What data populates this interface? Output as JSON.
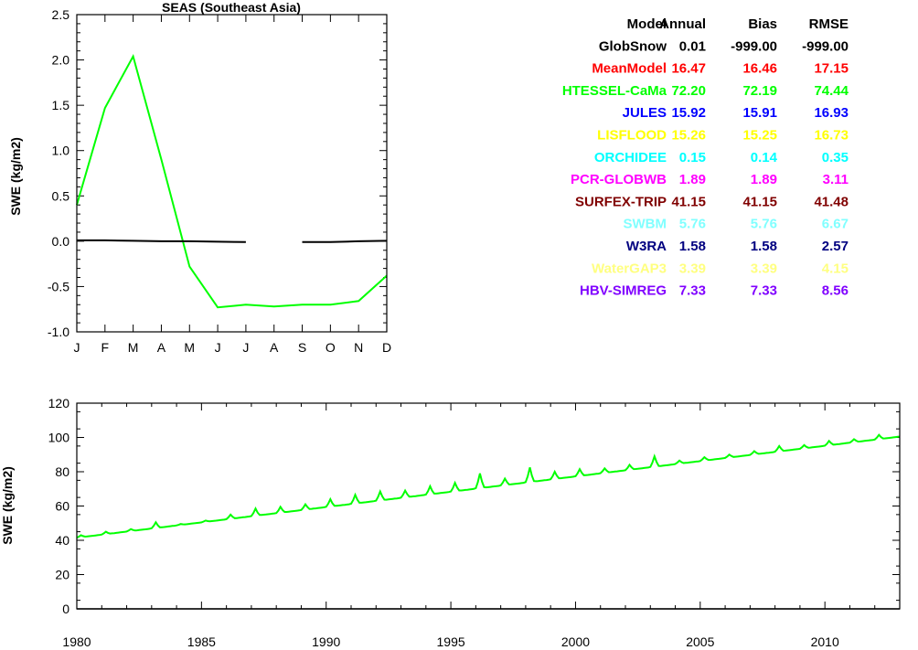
{
  "chart_data": [
    {
      "type": "line",
      "title": "SEAS (Southeast Asia)",
      "xlabel": "",
      "ylabel": "SWE (kg/m2)",
      "categories": [
        "J",
        "F",
        "M",
        "A",
        "M",
        "J",
        "J",
        "A",
        "S",
        "O",
        "N",
        "D"
      ],
      "ylim": [
        -1.0,
        2.5
      ],
      "yticks": [
        "2.5",
        "2.0",
        "1.5",
        "1.0",
        "0.5",
        "0.0",
        "-0.5",
        "-1.0"
      ],
      "series": [
        {
          "name": "HTESSEL-CaMa",
          "color": "#00ff00",
          "values": [
            0.4,
            1.47,
            2.04,
            0.9,
            -0.28,
            -0.73,
            -0.7,
            -0.72,
            -0.7,
            -0.7,
            -0.66,
            -0.38
          ]
        },
        {
          "name": "GlobSnow",
          "color": "#000000",
          "values": [
            0.01,
            0.01,
            0.005,
            0.0,
            0.0,
            -0.005,
            -0.01,
            null,
            -0.01,
            -0.01,
            0.0,
            0.005
          ]
        }
      ]
    },
    {
      "type": "line",
      "xlabel": "",
      "ylabel": "SWE (kg/m2)",
      "xlim": [
        1980,
        2013
      ],
      "ylim": [
        0,
        120
      ],
      "xticks": [
        "1980",
        "1985",
        "1990",
        "1995",
        "2000",
        "2005",
        "2010"
      ],
      "yticks": [
        "120",
        "100",
        "80",
        "60",
        "40",
        "20",
        "0"
      ],
      "series": [
        {
          "name": "HTESSEL-CaMa",
          "color": "#00ff00",
          "trend_start": 41.5,
          "trend_end": 100.5,
          "annual_peaks": [
            [
              1980,
              43
            ],
            [
              1981,
              45
            ],
            [
              1982,
              46.5
            ],
            [
              1983,
              50.5
            ],
            [
              1984,
              49.5
            ],
            [
              1985,
              51.5
            ],
            [
              1986,
              55
            ],
            [
              1987,
              58.5
            ],
            [
              1988,
              59.5
            ],
            [
              1989,
              61
            ],
            [
              1990,
              64
            ],
            [
              1991,
              66.5
            ],
            [
              1992,
              68.5
            ],
            [
              1993,
              69
            ],
            [
              1994,
              71.5
            ],
            [
              1995,
              73.5
            ],
            [
              1996,
              79
            ],
            [
              1997,
              76
            ],
            [
              1998,
              82.5
            ],
            [
              1999,
              80
            ],
            [
              2000,
              81.5
            ],
            [
              2001,
              82
            ],
            [
              2002,
              84
            ],
            [
              2003,
              89
            ],
            [
              2004,
              86.5
            ],
            [
              2005,
              88.5
            ],
            [
              2006,
              90
            ],
            [
              2007,
              92
            ],
            [
              2008,
              95
            ],
            [
              2009,
              95.5
            ],
            [
              2010,
              98
            ],
            [
              2011,
              99
            ],
            [
              2012,
              101.5
            ]
          ]
        },
        {
          "name": "GlobSnow",
          "color": "#000000",
          "constant": 0
        }
      ]
    }
  ],
  "stats_table": {
    "headers": [
      "Model",
      "Annual",
      "Bias",
      "RMSE"
    ],
    "rows": [
      {
        "name": "GlobSnow",
        "color": "#000000",
        "values": [
          "0.01",
          "-999.00",
          "-999.00"
        ]
      },
      {
        "name": "MeanModel",
        "color": "#ff0000",
        "values": [
          "16.47",
          "16.46",
          "17.15"
        ]
      },
      {
        "name": "HTESSEL-CaMa",
        "color": "#00ff00",
        "values": [
          "72.20",
          "72.19",
          "74.44"
        ]
      },
      {
        "name": "JULES",
        "color": "#0000ff",
        "values": [
          "15.92",
          "15.91",
          "16.93"
        ]
      },
      {
        "name": "LISFLOOD",
        "color": "#ffff00",
        "values": [
          "15.26",
          "15.25",
          "16.73"
        ]
      },
      {
        "name": "ORCHIDEE",
        "color": "#00ffff",
        "values": [
          "0.15",
          "0.14",
          "0.35"
        ]
      },
      {
        "name": "PCR-GLOBWB",
        "color": "#ff00ff",
        "values": [
          "1.89",
          "1.89",
          "3.11"
        ]
      },
      {
        "name": "SURFEX-TRIP",
        "color": "#800000",
        "values": [
          "41.15",
          "41.15",
          "41.48"
        ]
      },
      {
        "name": "SWBM",
        "color": "#80ffff",
        "values": [
          "5.76",
          "5.76",
          "6.67"
        ]
      },
      {
        "name": "W3RA",
        "color": "#000080",
        "values": [
          "1.58",
          "1.58",
          "2.57"
        ]
      },
      {
        "name": "WaterGAP3",
        "color": "#ffff80",
        "values": [
          "3.39",
          "3.39",
          "4.15"
        ]
      },
      {
        "name": "HBV-SIMREG",
        "color": "#8000ff",
        "values": [
          "7.33",
          "7.33",
          "8.56"
        ]
      }
    ]
  }
}
